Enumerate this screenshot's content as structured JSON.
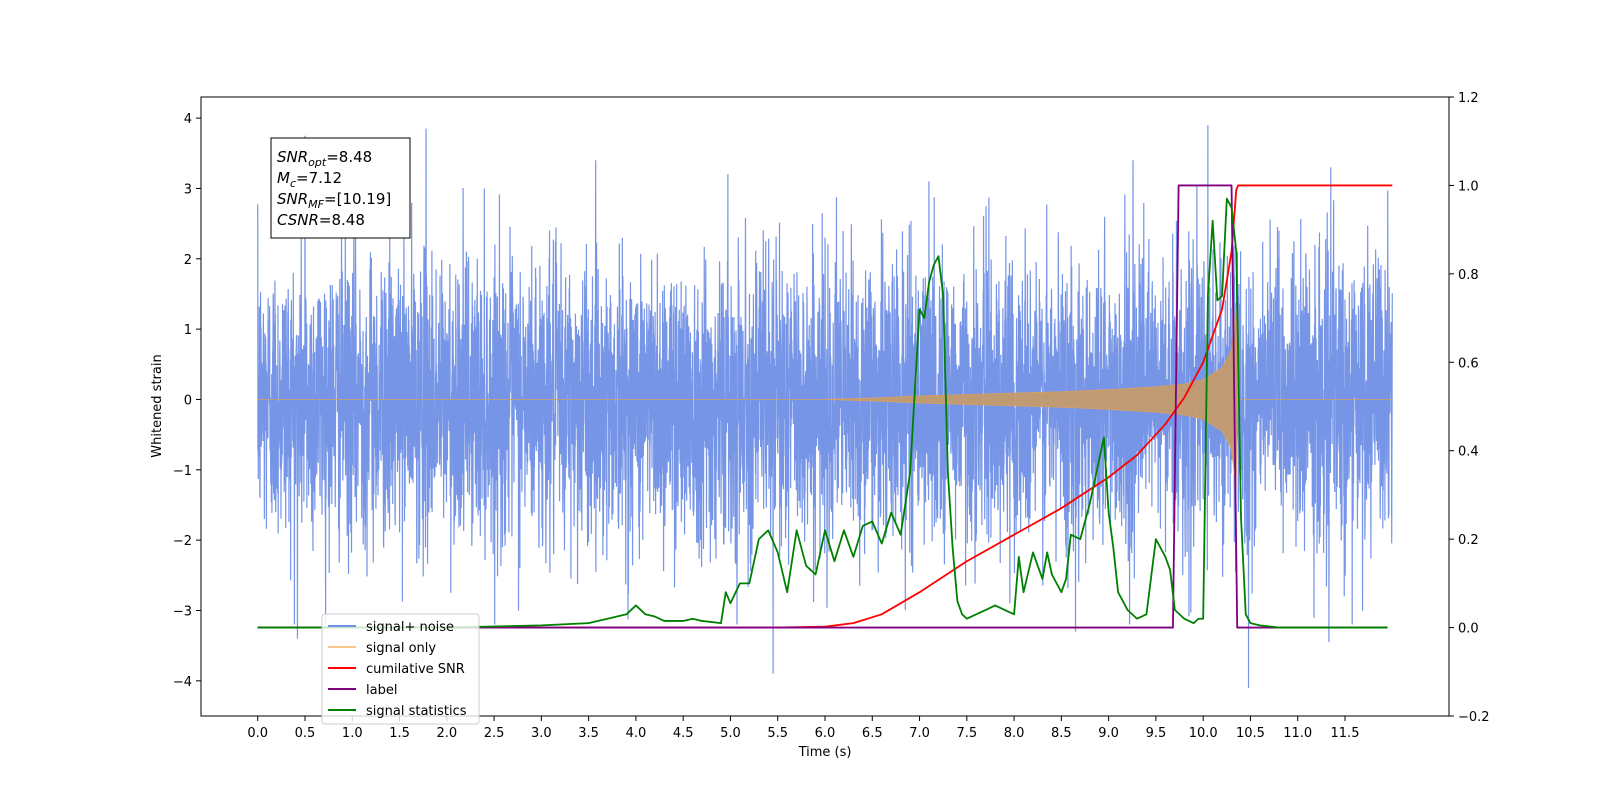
{
  "chart_data": {
    "type": "line",
    "title": "",
    "xlabel": "Time (s)",
    "ylabel": "Whitened strain",
    "y2label": "",
    "xlim": [
      -0.6,
      12.6
    ],
    "ylim": [
      -4.5,
      4.3
    ],
    "y2lim": [
      -0.2,
      1.2
    ],
    "xticks": [
      "0.0",
      "0.5",
      "1.0",
      "1.5",
      "2.0",
      "2.5",
      "3.0",
      "3.5",
      "4.0",
      "4.5",
      "5.0",
      "5.5",
      "6.0",
      "6.5",
      "7.0",
      "7.5",
      "8.0",
      "8.5",
      "9.0",
      "9.5",
      "10.0",
      "10.5",
      "11.0",
      "11.5"
    ],
    "yticks": [
      "4",
      "3",
      "2",
      "1",
      "0",
      "−1",
      "−2",
      "−3",
      "−4"
    ],
    "y2ticks": [
      "1.2",
      "1.0",
      "0.8",
      "0.6",
      "0.4",
      "0.2",
      "0.0",
      "−0.2"
    ],
    "grid": false,
    "legend_position": "lower-left",
    "colors": {
      "signal_noise": "#6f8fe6",
      "signal_only": "#f0a040",
      "cumulative_snr": "#ff0000",
      "label": "#800080",
      "signal_statistics": "#008000"
    },
    "annotation": {
      "lines": [
        {
          "var": "SNR",
          "sub": "opt",
          "value": "=8.48"
        },
        {
          "var": "M",
          "sub": "c",
          "value": "=7.12"
        },
        {
          "var": "SNR",
          "sub": "MF",
          "value": "=[10.19]"
        },
        {
          "var": "CSNR",
          "sub": "",
          "value": "=8.48"
        }
      ]
    },
    "series": [
      {
        "name": "signal+ noise",
        "axis": "left",
        "style": "noise",
        "x_range": [
          0.0,
          12.0
        ],
        "peaks": [
          {
            "x": 0.5,
            "y": 3.75
          },
          {
            "x": 1.78,
            "y": 3.85
          },
          {
            "x": 10.05,
            "y": 3.9
          },
          {
            "x": 7.1,
            "y": 3.1
          },
          {
            "x": 11.35,
            "y": 3.3
          },
          {
            "x": 5.45,
            "y": -3.9
          },
          {
            "x": 10.48,
            "y": -4.1
          },
          {
            "x": 0.42,
            "y": -3.4
          },
          {
            "x": 11.33,
            "y": -3.45
          },
          {
            "x": 8.65,
            "y": -3.3
          }
        ]
      },
      {
        "name": "signal only",
        "axis": "left",
        "style": "chirp",
        "envelope": {
          "x": [
            0.0,
            6.0,
            6.5,
            7.0,
            7.5,
            8.0,
            8.5,
            9.0,
            9.5,
            9.8,
            10.0,
            10.2,
            10.3,
            10.35,
            10.36,
            12.0
          ],
          "y": [
            0.0,
            0.0,
            0.02,
            0.05,
            0.07,
            0.09,
            0.11,
            0.14,
            0.18,
            0.22,
            0.28,
            0.45,
            0.7,
            1.3,
            0.0,
            0.0
          ]
        }
      },
      {
        "name": "cumilative SNR",
        "axis": "right",
        "x": [
          0.0,
          5.5,
          6.0,
          6.3,
          6.6,
          7.0,
          7.5,
          8.0,
          8.5,
          9.0,
          9.3,
          9.6,
          9.8,
          10.0,
          10.2,
          10.3,
          10.35,
          10.37,
          12.0
        ],
        "values": [
          0.0,
          0.0,
          0.002,
          0.01,
          0.03,
          0.08,
          0.15,
          0.21,
          0.27,
          0.34,
          0.39,
          0.46,
          0.52,
          0.6,
          0.72,
          0.85,
          0.99,
          1.0,
          1.0
        ]
      },
      {
        "name": "label",
        "axis": "right",
        "x": [
          0.0,
          9.68,
          9.74,
          10.3,
          10.36,
          11.95
        ],
        "values": [
          0.0,
          0.0,
          1.0,
          1.0,
          0.0,
          0.0
        ]
      },
      {
        "name": "signal statistics",
        "axis": "right",
        "x": [
          0.0,
          2.0,
          3.0,
          3.5,
          3.7,
          3.8,
          3.9,
          4.0,
          4.1,
          4.2,
          4.3,
          4.5,
          4.6,
          4.7,
          4.9,
          4.95,
          5.0,
          5.1,
          5.2,
          5.3,
          5.4,
          5.5,
          5.6,
          5.7,
          5.8,
          5.9,
          6.0,
          6.1,
          6.2,
          6.3,
          6.4,
          6.5,
          6.6,
          6.7,
          6.8,
          6.9,
          7.0,
          7.05,
          7.1,
          7.15,
          7.2,
          7.25,
          7.3,
          7.35,
          7.4,
          7.45,
          7.5,
          7.6,
          7.7,
          7.8,
          7.9,
          8.0,
          8.05,
          8.1,
          8.2,
          8.3,
          8.35,
          8.4,
          8.5,
          8.55,
          8.6,
          8.7,
          8.8,
          8.9,
          8.95,
          9.0,
          9.05,
          9.1,
          9.2,
          9.3,
          9.4,
          9.5,
          9.6,
          9.65,
          9.7,
          9.8,
          9.9,
          9.95,
          10.0,
          10.05,
          10.1,
          10.15,
          10.2,
          10.25,
          10.3,
          10.35,
          10.4,
          10.45,
          10.5,
          10.6,
          10.8,
          11.0,
          11.5,
          11.95
        ],
        "values": [
          0.0,
          0.0,
          0.005,
          0.01,
          0.02,
          0.025,
          0.03,
          0.05,
          0.03,
          0.025,
          0.015,
          0.015,
          0.02,
          0.015,
          0.01,
          0.08,
          0.055,
          0.1,
          0.1,
          0.2,
          0.22,
          0.17,
          0.08,
          0.22,
          0.14,
          0.12,
          0.22,
          0.15,
          0.22,
          0.16,
          0.23,
          0.24,
          0.19,
          0.26,
          0.21,
          0.35,
          0.72,
          0.7,
          0.78,
          0.82,
          0.84,
          0.75,
          0.35,
          0.18,
          0.06,
          0.03,
          0.02,
          0.03,
          0.04,
          0.05,
          0.04,
          0.03,
          0.16,
          0.08,
          0.17,
          0.11,
          0.17,
          0.12,
          0.08,
          0.11,
          0.21,
          0.2,
          0.28,
          0.38,
          0.43,
          0.26,
          0.18,
          0.08,
          0.04,
          0.02,
          0.03,
          0.2,
          0.16,
          0.13,
          0.04,
          0.02,
          0.01,
          0.02,
          0.02,
          0.75,
          0.92,
          0.74,
          0.75,
          0.97,
          0.95,
          0.85,
          0.25,
          0.03,
          0.01,
          0.005,
          0.0,
          0.0,
          0.0,
          0.0
        ]
      }
    ]
  }
}
